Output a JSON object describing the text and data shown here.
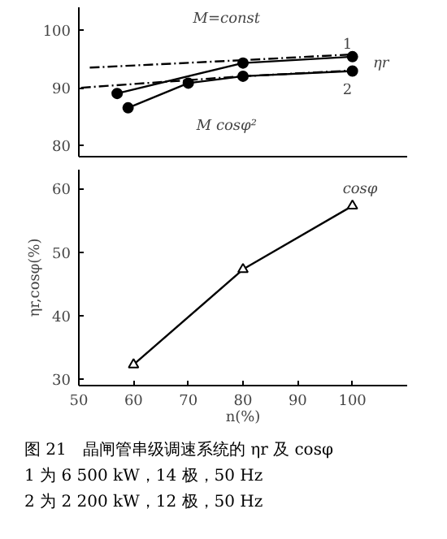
{
  "chart_data": [
    {
      "type": "line",
      "xlim": [
        50,
        110
      ],
      "ylim": [
        78,
        104
      ],
      "yticks": [
        80,
        90,
        100
      ],
      "tick_labels": "y",
      "grid": false,
      "series": [
        {
          "name": "1",
          "color": "#000000",
          "x": [
            57,
            80,
            100
          ],
          "values": [
            89,
            94.3,
            95.4
          ],
          "marker": "circle",
          "line_style": "solid"
        },
        {
          "name": "2",
          "color": "#000000",
          "x": [
            59,
            70,
            80,
            100
          ],
          "values": [
            86.5,
            90.8,
            92,
            92.9
          ],
          "marker": "circle",
          "line_style": "solid"
        },
        {
          "color": "#000000",
          "x": [
            52,
            80,
            100
          ],
          "values": [
            93.5,
            94.8,
            95.8
          ],
          "marker": "none",
          "line_style": "dashed"
        },
        {
          "color": "#000000",
          "x": [
            50.4,
            80,
            100
          ],
          "values": [
            90,
            92,
            93
          ],
          "marker": "none",
          "line_style": "dashed"
        }
      ],
      "annotations": [
        "M=const",
        "M cosφ²",
        "ηr"
      ]
    },
    {
      "type": "line",
      "xlim": [
        50,
        110
      ],
      "ylim": [
        29,
        63
      ],
      "xticks": [
        50,
        60,
        70,
        80,
        90,
        100
      ],
      "yticks": [
        30,
        40,
        50,
        60
      ],
      "xlabel": "n(%)",
      "ylabel": "ηr,cosφ(%)",
      "grid": false,
      "series": [
        {
          "name": "cosφ",
          "color": "#000000",
          "x": [
            60,
            80,
            100
          ],
          "values": [
            32.3,
            47.3,
            57.3
          ],
          "marker": "triangle",
          "line_style": "solid"
        }
      ],
      "annotations": [
        "图 21　晶闸管串级调速系统的 ηr 及 cosφ",
        "1 为 6 500 kW，14 极，50 Hz",
        "2 为 2 200 kW，12 极，50 Hz"
      ]
    }
  ]
}
